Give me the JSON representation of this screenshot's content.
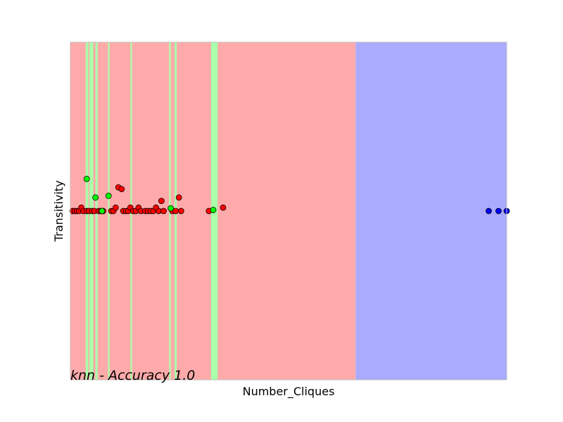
{
  "chart_data": {
    "type": "scatter",
    "title": "",
    "xlabel": "Number_Cliques",
    "ylabel": "Transitivity",
    "annotation": "knn - Accuracy 1.0",
    "xticks": [],
    "yticks": [],
    "xlim": [
      0,
      80
    ],
    "ylim": [
      -0.5,
      0.5
    ],
    "grid": false,
    "legend": "none",
    "colors": {
      "region_red": "#ffaaaa",
      "region_green": "#aaffaa",
      "region_blue": "#aaaaff",
      "point_red": "#ff0000",
      "point_green": "#00ff00",
      "point_blue": "#0000ff",
      "axes_border": "#bfbfbf"
    },
    "decision_regions": [
      {
        "class": "red",
        "x_start": 0,
        "x_end": 52.3
      },
      {
        "class": "blue",
        "x_start": 52.3,
        "x_end": 80
      },
      {
        "class": "green",
        "x_start": 2.8,
        "x_end": 3.3
      },
      {
        "class": "green",
        "x_start": 3.5,
        "x_end": 4.2
      },
      {
        "class": "green",
        "x_start": 4.6,
        "x_end": 5.0
      },
      {
        "class": "green",
        "x_start": 6.9,
        "x_end": 7.2
      },
      {
        "class": "green",
        "x_start": 11.0,
        "x_end": 11.3
      },
      {
        "class": "green",
        "x_start": 18.1,
        "x_end": 18.4
      },
      {
        "class": "green",
        "x_start": 19.1,
        "x_end": 19.5
      },
      {
        "class": "green",
        "x_start": 25.8,
        "x_end": 27.0
      }
    ],
    "series": [
      {
        "class": "red",
        "points": [
          [
            0.4,
            0
          ],
          [
            0.8,
            0
          ],
          [
            1.2,
            0
          ],
          [
            1.6,
            0
          ],
          [
            2.0,
            0.01
          ],
          [
            2.4,
            0
          ],
          [
            3.0,
            0
          ],
          [
            3.4,
            0
          ],
          [
            4.0,
            0
          ],
          [
            4.4,
            0
          ],
          [
            5.2,
            0
          ],
          [
            5.6,
            0
          ],
          [
            6.0,
            0
          ],
          [
            7.5,
            0
          ],
          [
            7.9,
            0
          ],
          [
            8.3,
            0.01
          ],
          [
            8.8,
            0.07
          ],
          [
            9.4,
            0.065
          ],
          [
            9.7,
            0
          ],
          [
            10.2,
            0
          ],
          [
            10.6,
            0
          ],
          [
            11.0,
            0.01
          ],
          [
            11.5,
            0
          ],
          [
            12.0,
            0
          ],
          [
            12.5,
            0.01
          ],
          [
            12.9,
            0
          ],
          [
            13.7,
            0
          ],
          [
            14.2,
            0
          ],
          [
            14.7,
            0
          ],
          [
            15.2,
            0
          ],
          [
            15.7,
            0.01
          ],
          [
            16.2,
            0
          ],
          [
            16.7,
            0.03
          ],
          [
            17.1,
            0
          ],
          [
            18.7,
            0
          ],
          [
            19.3,
            0
          ],
          [
            19.9,
            0.04
          ],
          [
            20.3,
            0
          ],
          [
            25.4,
            0
          ],
          [
            28.0,
            0.01
          ]
        ]
      },
      {
        "class": "green",
        "points": [
          [
            3.0,
            0.095
          ],
          [
            4.6,
            0.04
          ],
          [
            5.8,
            0
          ],
          [
            7.0,
            0.045
          ],
          [
            18.4,
            0.008
          ],
          [
            26.2,
            0.003
          ]
        ]
      },
      {
        "class": "blue",
        "points": [
          [
            76.7,
            0
          ],
          [
            78.5,
            0
          ],
          [
            80.0,
            0
          ]
        ]
      }
    ]
  }
}
